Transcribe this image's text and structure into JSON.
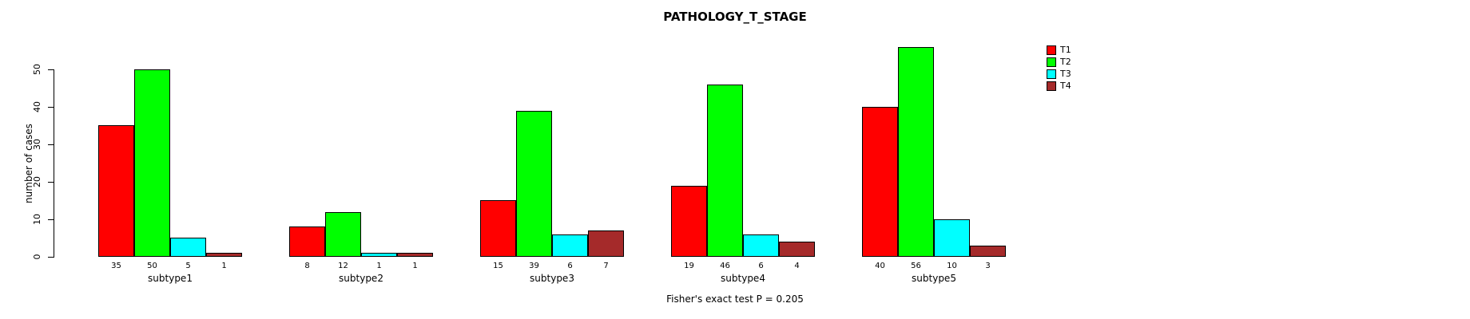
{
  "chart_data": {
    "type": "bar",
    "title": "PATHOLOGY_T_STAGE",
    "ylabel": "number of cases",
    "xlabel": "",
    "annotation": "Fisher's exact test P = 0.205",
    "categories": [
      "subtype1",
      "subtype2",
      "subtype3",
      "subtype4",
      "subtype5"
    ],
    "series": [
      {
        "name": "T1",
        "color": "#FF0000",
        "values": [
          35,
          8,
          15,
          19,
          40
        ]
      },
      {
        "name": "T2",
        "color": "#00FF00",
        "values": [
          50,
          12,
          39,
          46,
          56
        ]
      },
      {
        "name": "T3",
        "color": "#00FFFF",
        "values": [
          5,
          1,
          6,
          6,
          10
        ]
      },
      {
        "name": "T4",
        "color": "#A52A2A",
        "values": [
          1,
          1,
          7,
          4,
          3
        ]
      }
    ],
    "yticks": [
      0,
      10,
      20,
      30,
      40,
      50
    ],
    "ylim": [
      0,
      56
    ],
    "grid": false,
    "legend_position": "top-right",
    "bar_value_labels": true
  }
}
